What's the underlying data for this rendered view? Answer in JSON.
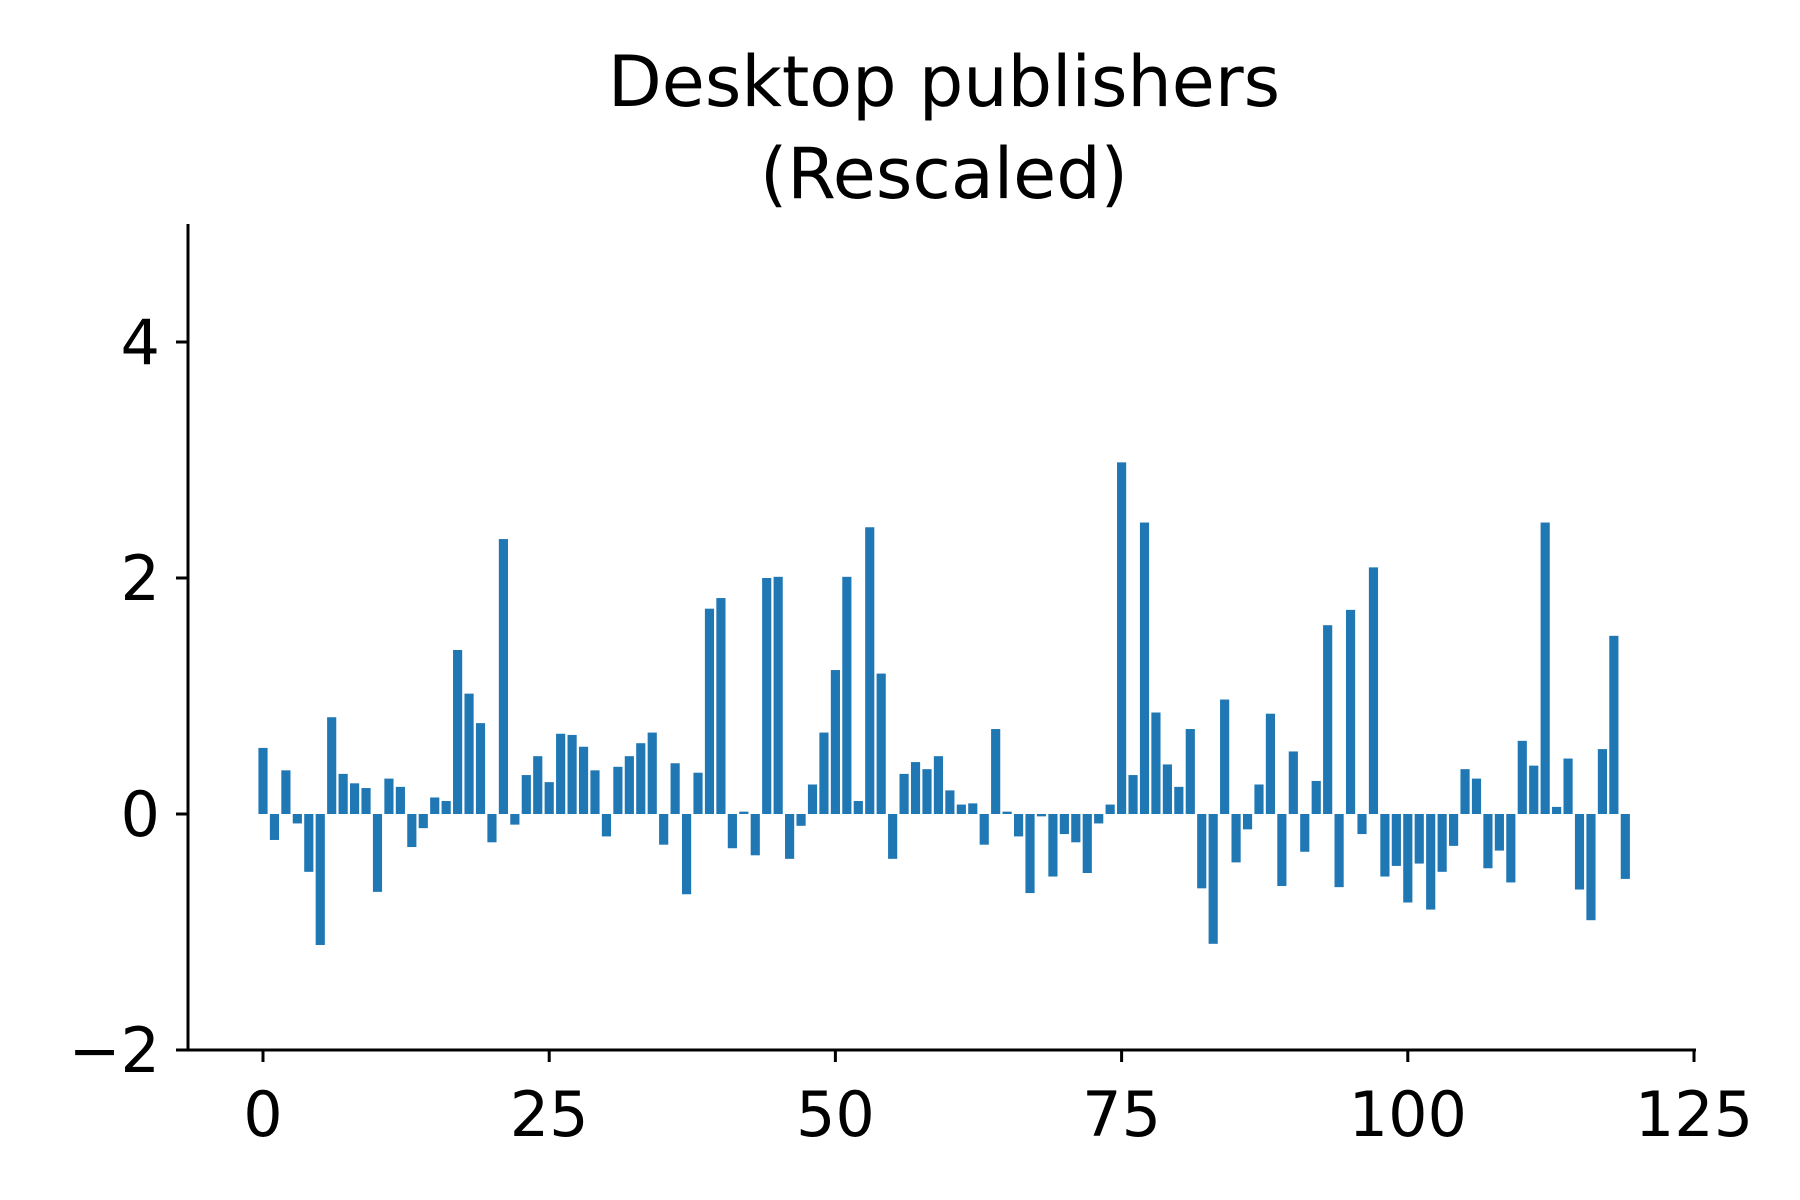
{
  "chart_data": {
    "type": "bar",
    "title_line1": "Desktop publishers",
    "title_line2": "(Rescaled)",
    "xlabel": "",
    "ylabel": "",
    "xlim": [
      -6.5,
      125
    ],
    "ylim": [
      -2,
      5
    ],
    "xticks": [
      0,
      25,
      50,
      75,
      100,
      125
    ],
    "yticks": [
      -2,
      0,
      2,
      4
    ],
    "xtick_labels": [
      "0",
      "25",
      "50",
      "75",
      "100",
      "125"
    ],
    "ytick_labels": [
      "−2",
      "0",
      "2",
      "4"
    ],
    "grid": false,
    "bar_color": "#1f77b4",
    "x": [
      0,
      1,
      2,
      3,
      4,
      5,
      6,
      7,
      8,
      9,
      10,
      11,
      12,
      13,
      14,
      15,
      16,
      17,
      18,
      19,
      20,
      21,
      22,
      23,
      24,
      25,
      26,
      27,
      28,
      29,
      30,
      31,
      32,
      33,
      34,
      35,
      36,
      37,
      38,
      39,
      40,
      41,
      42,
      43,
      44,
      45,
      46,
      47,
      48,
      49,
      50,
      51,
      52,
      53,
      54,
      55,
      56,
      57,
      58,
      59,
      60,
      61,
      62,
      63,
      64,
      65,
      66,
      67,
      68,
      69,
      70,
      71,
      72,
      73,
      74,
      75,
      76,
      77,
      78,
      79,
      80,
      81,
      82,
      83,
      84,
      85,
      86,
      87,
      88,
      89,
      90,
      91,
      92,
      93,
      94,
      95,
      96,
      97,
      98,
      99,
      100,
      101,
      102,
      103,
      104,
      105,
      106,
      107,
      108,
      109,
      110,
      111,
      112,
      113,
      114,
      115,
      116,
      117,
      118,
      119
    ],
    "values": [
      0.56,
      -0.22,
      0.37,
      -0.08,
      -0.49,
      -1.11,
      0.82,
      0.34,
      0.26,
      0.22,
      -0.66,
      0.3,
      0.23,
      -0.28,
      -0.12,
      0.14,
      0.11,
      1.39,
      1.02,
      0.77,
      -0.24,
      2.33,
      -0.09,
      0.33,
      0.49,
      0.27,
      0.68,
      0.67,
      0.57,
      0.37,
      -0.19,
      0.4,
      0.49,
      0.6,
      0.69,
      -0.26,
      0.43,
      -0.68,
      0.35,
      1.74,
      1.83,
      -0.29,
      0.02,
      -0.35,
      2.0,
      2.01,
      -0.38,
      -0.1,
      0.25,
      0.69,
      1.22,
      2.01,
      0.11,
      2.43,
      1.19,
      -0.38,
      0.34,
      0.44,
      0.38,
      0.49,
      0.2,
      0.08,
      0.09,
      -0.26,
      0.72,
      0.02,
      -0.19,
      -0.67,
      -0.02,
      -0.53,
      -0.17,
      -0.24,
      -0.5,
      -0.08,
      0.08,
      2.98,
      0.33,
      2.47,
      0.86,
      0.42,
      0.23,
      0.72,
      -0.63,
      -1.1,
      0.97,
      -0.41,
      -0.13,
      0.25,
      0.85,
      -0.61,
      0.53,
      -0.32,
      0.28,
      1.6,
      -0.62,
      1.73,
      -0.17,
      2.09,
      -0.53,
      -0.44,
      -0.75,
      -0.42,
      -0.81,
      -0.49,
      -0.27,
      0.38,
      0.3,
      -0.46,
      -0.31,
      -0.58,
      0.62,
      0.41,
      2.47,
      0.06,
      0.47,
      -0.64,
      -0.9,
      0.55,
      1.51,
      -0.55
    ]
  }
}
